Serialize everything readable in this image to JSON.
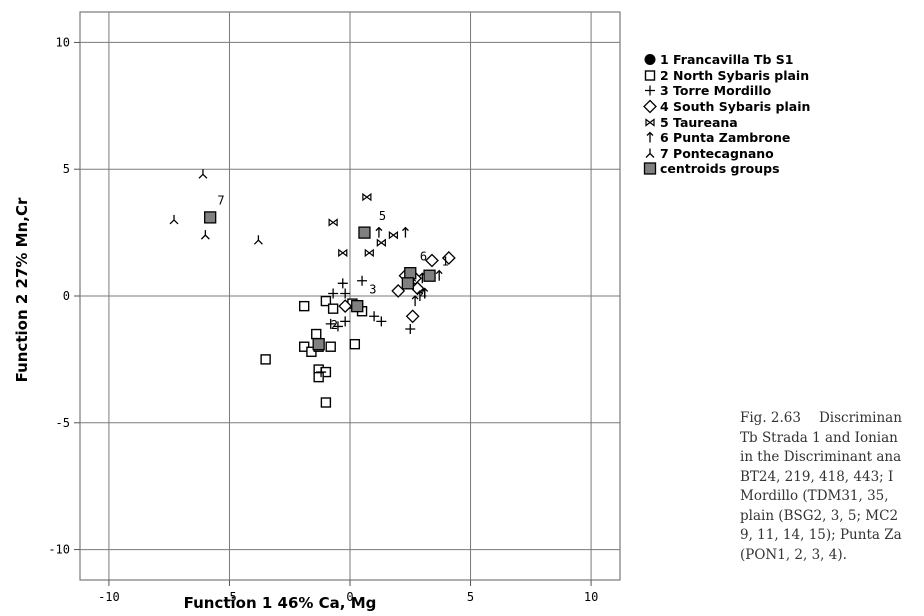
{
  "chart_data": {
    "type": "scatter",
    "xlabel": "Function 1 46% Ca, Mg",
    "ylabel": "Function 2 27% Mn,Cr",
    "xlim": [
      -11.2,
      11.2
    ],
    "ylim": [
      -11.2,
      11.2
    ],
    "xticks": [
      -10,
      -5,
      0,
      5,
      10
    ],
    "yticks": [
      -10,
      -5,
      0,
      5,
      10
    ],
    "grid": true,
    "legend_position": "right",
    "series": [
      {
        "name": "1 Francavilla Tb S1",
        "marker": "filled-circle",
        "points": []
      },
      {
        "name": "2 North Sybaris plain",
        "marker": "open-square",
        "points": [
          [
            -1.9,
            -0.4
          ],
          [
            -1.0,
            -0.2
          ],
          [
            -0.7,
            -0.5
          ],
          [
            0.1,
            -0.3
          ],
          [
            0.5,
            -0.6
          ],
          [
            -1.9,
            -2.0
          ],
          [
            -1.6,
            -2.2
          ],
          [
            -1.3,
            -2.0
          ],
          [
            -1.4,
            -1.5
          ],
          [
            -0.8,
            -2.0
          ],
          [
            -1.3,
            -2.9
          ],
          [
            -1.0,
            -3.0
          ],
          [
            -1.3,
            -3.2
          ],
          [
            -1.0,
            -4.2
          ],
          [
            -3.5,
            -2.5
          ],
          [
            0.2,
            -1.9
          ]
        ]
      },
      {
        "name": "3 Torre Mordillo",
        "marker": "cross",
        "points": [
          [
            -0.3,
            0.5
          ],
          [
            0.5,
            0.6
          ],
          [
            -0.7,
            0.1
          ],
          [
            -0.2,
            0.1
          ],
          [
            -0.8,
            -1.1
          ],
          [
            -0.5,
            -1.2
          ],
          [
            -0.2,
            -1.0
          ],
          [
            1.0,
            -0.8
          ],
          [
            1.3,
            -1.0
          ],
          [
            2.5,
            -1.3
          ],
          [
            -1.2,
            -3.0
          ]
        ]
      },
      {
        "name": "4 South Sybaris plain",
        "marker": "open-diamond",
        "points": [
          [
            4.1,
            1.5
          ],
          [
            3.4,
            1.4
          ],
          [
            2.3,
            0.8
          ],
          [
            2.7,
            0.7
          ],
          [
            2.0,
            0.2
          ],
          [
            2.8,
            0.3
          ],
          [
            -0.2,
            -0.4
          ],
          [
            2.6,
            -0.8
          ]
        ]
      },
      {
        "name": "5 Taureana",
        "marker": "bowtie",
        "points": [
          [
            0.7,
            3.9
          ],
          [
            -0.7,
            2.9
          ],
          [
            1.8,
            2.4
          ],
          [
            1.3,
            2.1
          ],
          [
            -0.3,
            1.7
          ],
          [
            0.8,
            1.7
          ]
        ]
      },
      {
        "name": "6 Punta Zambrone",
        "marker": "up-arrow",
        "points": [
          [
            1.2,
            2.5
          ],
          [
            2.3,
            2.5
          ],
          [
            3.4,
            0.8
          ],
          [
            3.7,
            0.8
          ],
          [
            2.5,
            0.8
          ],
          [
            3.0,
            0.7
          ],
          [
            2.6,
            0.5
          ],
          [
            2.7,
            -0.2
          ],
          [
            2.9,
            0.0
          ],
          [
            3.1,
            0.1
          ]
        ]
      },
      {
        "name": "7 Pontecagnano",
        "marker": "tri-down",
        "points": [
          [
            -6.1,
            4.8
          ],
          [
            -7.3,
            3.0
          ],
          [
            -6.0,
            2.4
          ],
          [
            -3.8,
            2.2
          ]
        ]
      },
      {
        "name": "centroids groups",
        "marker": "filled-square-gray",
        "points": [
          [
            -5.8,
            3.1
          ],
          [
            0.6,
            2.5
          ],
          [
            2.5,
            0.9
          ],
          [
            3.3,
            0.8
          ],
          [
            2.4,
            0.5
          ],
          [
            0.3,
            -0.4
          ],
          [
            -1.3,
            -1.9
          ]
        ]
      }
    ],
    "centroid_labels": [
      {
        "text": "7",
        "x": -5.5,
        "y": 3.6
      },
      {
        "text": "5",
        "x": 1.2,
        "y": 3.0
      },
      {
        "text": "6",
        "x": 2.9,
        "y": 1.4
      },
      {
        "text": "1",
        "x": 3.8,
        "y": 1.2
      },
      {
        "text": "4",
        "x": 2.9,
        "y": -0.1
      },
      {
        "text": "3",
        "x": 0.8,
        "y": 0.1
      },
      {
        "text": "2",
        "x": -0.8,
        "y": -1.3
      }
    ]
  },
  "caption": {
    "fig_no": "Fig. 2.63",
    "lines": [
      "Discriminan",
      "Tb Strada 1 and Ionian",
      "in the Discriminant ana",
      "BT24, 219, 418, 443; I",
      "Mordillo (TDM31, 35,",
      "plain (BSG2, 3, 5; MC2",
      "9, 11, 14, 15); Punta Za",
      "(PON1, 2, 3, 4)."
    ]
  }
}
